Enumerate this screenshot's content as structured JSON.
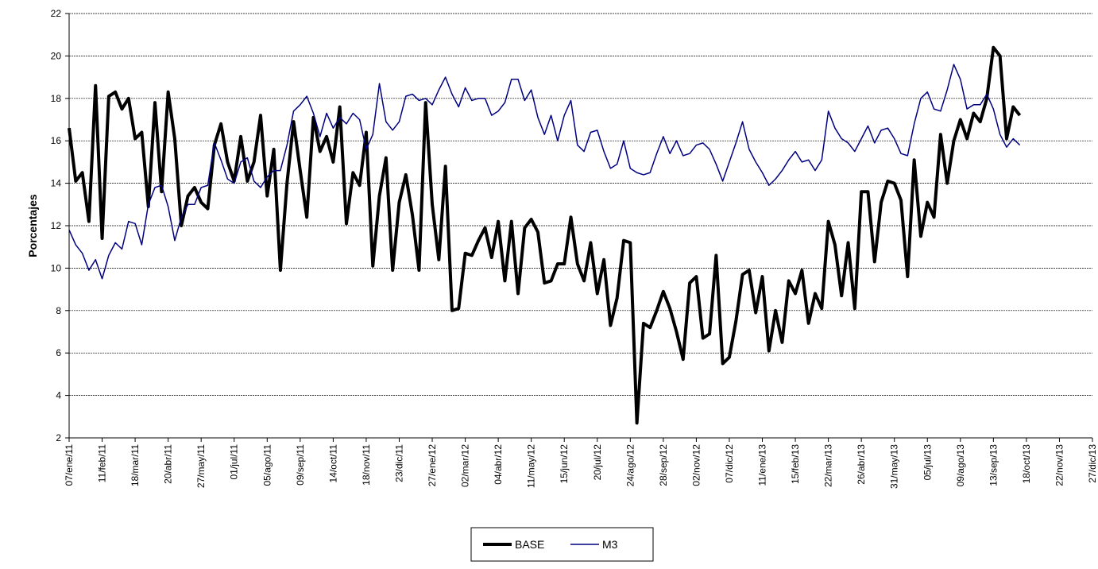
{
  "chart_data": {
    "type": "line",
    "y_label": "Porcentajes",
    "categories": [
      "07/ene/11",
      null,
      null,
      null,
      null,
      "11/feb/11",
      null,
      null,
      null,
      null,
      "18/mar/11",
      null,
      null,
      null,
      null,
      "20/abr/11",
      null,
      null,
      null,
      null,
      "27/may/11",
      null,
      null,
      null,
      null,
      "01/jul/11",
      null,
      null,
      null,
      null,
      "05/ago/11",
      null,
      null,
      null,
      null,
      "09/sep/11",
      null,
      null,
      null,
      null,
      "14/oct/11",
      null,
      null,
      null,
      null,
      "18/nov/11",
      null,
      null,
      null,
      null,
      "23/dic/11",
      null,
      null,
      null,
      null,
      "27/ene/12",
      null,
      null,
      null,
      null,
      "02/mar/12",
      null,
      null,
      null,
      null,
      "04/abr/12",
      null,
      null,
      null,
      null,
      "11/may/12",
      null,
      null,
      null,
      null,
      "15/jun/12",
      null,
      null,
      null,
      null,
      "20/jul/12",
      null,
      null,
      null,
      null,
      "24/ago/12",
      null,
      null,
      null,
      null,
      "28/sep/12",
      null,
      null,
      null,
      null,
      "02/nov/12",
      null,
      null,
      null,
      null,
      "07/dic/12",
      null,
      null,
      null,
      null,
      "11/ene/13",
      null,
      null,
      null,
      null,
      "15/feb/13",
      null,
      null,
      null,
      null,
      "22/mar/13",
      null,
      null,
      null,
      null,
      "26/abr/13",
      null,
      null,
      null,
      null,
      "31/may/13",
      null,
      null,
      null,
      null,
      "05/jul/13",
      null,
      null,
      null,
      null,
      "09/ago/13",
      null,
      null,
      null,
      null,
      "13/sep/13",
      null,
      null,
      null,
      null,
      "18/oct/13",
      null,
      null,
      null,
      null,
      "22/nov/13",
      null,
      null,
      null,
      null,
      "27/dic/13"
    ],
    "series": [
      {
        "name": "BASE",
        "color": "#000000",
        "width": 4,
        "values": [
          16.6,
          14.1,
          14.5,
          12.2,
          18.6,
          11.4,
          18.1,
          18.3,
          17.5,
          18.0,
          16.1,
          16.4,
          12.9,
          17.8,
          13.6,
          18.3,
          16.1,
          12.0,
          13.4,
          13.8,
          13.1,
          12.8,
          15.8,
          16.8,
          15.0,
          14.1,
          16.2,
          14.1,
          15.0,
          17.2,
          13.4,
          15.6,
          9.9,
          14.0,
          16.9,
          14.6,
          12.4,
          17.1,
          15.5,
          16.2,
          15.0,
          17.6,
          12.1,
          14.5,
          13.9,
          16.4,
          10.1,
          13.4,
          15.2,
          9.9,
          13.1,
          14.4,
          12.5,
          9.9,
          17.8,
          13.0,
          10.4,
          14.8,
          8.0,
          8.1,
          10.7,
          10.6,
          11.3,
          11.9,
          10.5,
          12.2,
          9.4,
          12.2,
          8.8,
          11.9,
          12.3,
          11.7,
          9.3,
          9.4,
          10.2,
          10.2,
          12.4,
          10.2,
          9.4,
          11.2,
          8.8,
          10.4,
          7.3,
          8.6,
          11.3,
          11.2,
          2.7,
          7.4,
          7.2,
          8.0,
          8.9,
          8.1,
          7.0,
          5.7,
          9.3,
          9.6,
          6.7,
          6.9,
          10.6,
          5.5,
          5.8,
          7.5,
          9.7,
          9.9,
          7.9,
          9.6,
          6.1,
          8.0,
          6.5,
          9.4,
          8.8,
          9.9,
          7.4,
          8.8,
          8.1,
          12.2,
          11.1,
          8.7,
          11.2,
          8.1,
          13.6,
          13.6,
          10.3,
          13.1,
          14.1,
          14.0,
          13.2,
          9.6,
          15.1,
          11.5,
          13.1,
          12.4,
          16.3,
          14.0,
          16.0,
          17.0,
          16.1,
          17.3,
          16.9,
          18.0,
          20.4,
          20.0,
          16.1,
          17.6,
          17.2,
          null,
          null,
          null,
          null,
          null,
          null,
          null,
          null,
          null,
          null,
          null
        ]
      },
      {
        "name": "M3",
        "color": "#000080",
        "width": 1.5,
        "values": [
          11.8,
          11.1,
          10.7,
          9.9,
          10.4,
          9.5,
          10.6,
          11.2,
          10.9,
          12.2,
          12.1,
          11.1,
          13.0,
          13.8,
          13.9,
          12.9,
          11.3,
          12.4,
          13.0,
          13.0,
          13.8,
          13.9,
          15.9,
          15.1,
          14.2,
          14.0,
          15.0,
          15.2,
          14.1,
          13.8,
          14.3,
          14.6,
          14.6,
          15.8,
          17.4,
          17.7,
          18.1,
          17.3,
          16.2,
          17.3,
          16.6,
          17.1,
          16.8,
          17.3,
          17.0,
          15.6,
          16.3,
          18.7,
          16.9,
          16.5,
          16.9,
          18.1,
          18.2,
          17.9,
          18.0,
          17.7,
          18.4,
          19.0,
          18.2,
          17.6,
          18.5,
          17.9,
          18.0,
          18.0,
          17.2,
          17.4,
          17.8,
          18.9,
          18.9,
          17.9,
          18.4,
          17.1,
          16.3,
          17.2,
          16.0,
          17.2,
          17.9,
          15.8,
          15.5,
          16.4,
          16.5,
          15.5,
          14.7,
          14.9,
          16.0,
          14.7,
          14.5,
          14.4,
          14.5,
          15.4,
          16.2,
          15.4,
          16.0,
          15.3,
          15.4,
          15.8,
          15.9,
          15.6,
          14.9,
          14.1,
          15.0,
          15.9,
          16.9,
          15.6,
          15.0,
          14.5,
          13.9,
          14.2,
          14.6,
          15.1,
          15.5,
          15.0,
          15.1,
          14.6,
          15.1,
          17.4,
          16.6,
          16.1,
          15.9,
          15.5,
          16.1,
          16.7,
          15.9,
          16.5,
          16.6,
          16.1,
          15.4,
          15.3,
          16.8,
          18.0,
          18.3,
          17.5,
          17.4,
          18.4,
          19.6,
          18.9,
          17.5,
          17.7,
          17.7,
          18.2,
          17.5,
          16.3,
          15.7,
          16.1,
          15.8,
          null,
          null,
          null,
          null,
          null,
          null,
          null,
          null,
          null,
          null,
          null
        ]
      }
    ],
    "ylim": [
      2,
      22
    ],
    "yticks": [
      2,
      4,
      6,
      8,
      10,
      12,
      14,
      16,
      18,
      20,
      22
    ],
    "grid": true,
    "legend": "bottom"
  }
}
